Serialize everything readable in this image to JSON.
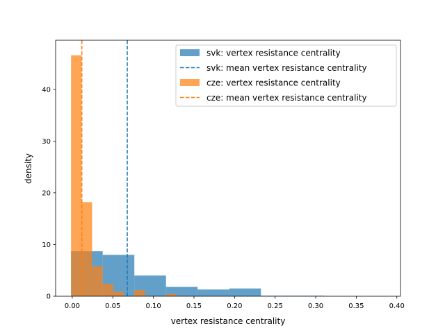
{
  "chart_data": {
    "type": "bar",
    "xlabel": "vertex resistance centrality",
    "ylabel": "density",
    "xlim": [
      -0.0205,
      0.4045
    ],
    "ylim": [
      0,
      49.5
    ],
    "xticks": [
      0.0,
      0.05,
      0.1,
      0.15,
      0.2,
      0.25,
      0.3,
      0.35,
      0.4
    ],
    "xtick_labels": [
      "0.00",
      "0.05",
      "0.10",
      "0.15",
      "0.20",
      "0.25",
      "0.30",
      "0.35",
      "0.40"
    ],
    "yticks": [
      0,
      10,
      20,
      30,
      40
    ],
    "ytick_labels": [
      "0",
      "10",
      "20",
      "30",
      "40"
    ],
    "legend_position": "top-right",
    "grid": false,
    "series": [
      {
        "name": "svk: vertex resistance centrality",
        "color": "#1f77b4",
        "opacity": 0.7,
        "bin_edges": [
          -0.0015,
          0.0375,
          0.0765,
          0.1155,
          0.1545,
          0.1935,
          0.2325,
          0.2715,
          0.3105,
          0.3495,
          0.3885
        ],
        "values": [
          8.7,
          8.0,
          4.0,
          1.8,
          1.3,
          1.5,
          0.1,
          0.1,
          0.0,
          0.0
        ]
      },
      {
        "name": "cze: vertex resistance centrality",
        "color": "#ff7f0e",
        "opacity": 0.7,
        "bin_edges": [
          -0.0015,
          0.0115,
          0.0245,
          0.0375,
          0.0505,
          0.0635,
          0.0765,
          0.0895,
          0.1025,
          0.1155,
          0.1285,
          0.1415
        ],
        "values": [
          46.6,
          18.2,
          5.8,
          2.4,
          0.9,
          0.0,
          1.2,
          0.0,
          0.0,
          0.4,
          0.0
        ]
      }
    ],
    "mean_lines": [
      {
        "name": "svk: mean vertex resistance centrality",
        "x": 0.0678,
        "color": "#1f77b4"
      },
      {
        "name": "cze: mean vertex resistance centrality",
        "x": 0.0118,
        "color": "#ff7f0e"
      }
    ],
    "legend": [
      {
        "label": "svk: vertex resistance centrality",
        "kind": "patch",
        "color": "#1f77b4"
      },
      {
        "label": "svk: mean vertex resistance centrality",
        "kind": "dashed",
        "color": "#1f77b4"
      },
      {
        "label": "cze: vertex resistance centrality",
        "kind": "patch",
        "color": "#ff7f0e"
      },
      {
        "label": "cze: mean vertex resistance centrality",
        "kind": "dashed",
        "color": "#ff7f0e"
      }
    ]
  }
}
